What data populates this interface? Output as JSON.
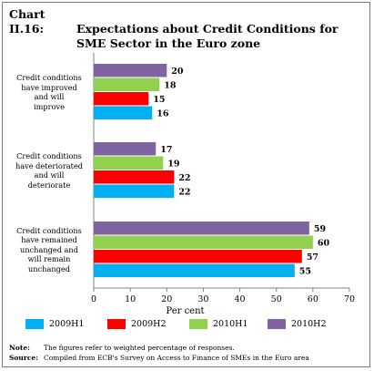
{
  "title": {
    "number": "Chart II.16:",
    "line1": "Expectations about Credit Conditions for",
    "line2": "SME Sector in the Euro zone"
  },
  "chart_data": {
    "type": "bar",
    "orientation": "horizontal",
    "categories": [
      "Credit conditions have improved and will improve",
      "Credit conditions have deteriorated and will deteriorate",
      "Credit conditions have remained unchanged and will remain unchanged"
    ],
    "category_lines": [
      [
        "Credit conditions",
        "have improved",
        "and will",
        "improve"
      ],
      [
        "Credit conditions",
        "have deteriorated",
        "and will",
        "deteriorate"
      ],
      [
        "Credit conditions",
        "have remained",
        "unchanged and",
        "will remain",
        "unchanged"
      ]
    ],
    "series": [
      {
        "name": "2009H1",
        "color": "#00b0f0",
        "values": [
          16,
          22,
          55
        ]
      },
      {
        "name": "2009H2",
        "color": "#ff0000",
        "values": [
          15,
          22,
          57
        ]
      },
      {
        "name": "2010H1",
        "color": "#92d050",
        "values": [
          18,
          19,
          60
        ]
      },
      {
        "name": "2010H2",
        "color": "#8064a2",
        "values": [
          20,
          17,
          59
        ]
      }
    ],
    "xlabel": "Per cent",
    "xlim": [
      0,
      70
    ],
    "xticks": [
      0,
      10,
      20,
      30,
      40,
      50,
      60,
      70
    ],
    "grid": false,
    "legend_position": "bottom"
  },
  "notes": {
    "note_label": "Note:",
    "note_text": "The figures refer to weighted percentage of responses.",
    "source_label": "Source:",
    "source_text": "Compiled from ECB's Survey on Access to Finance of SMEs in the Euro area"
  }
}
